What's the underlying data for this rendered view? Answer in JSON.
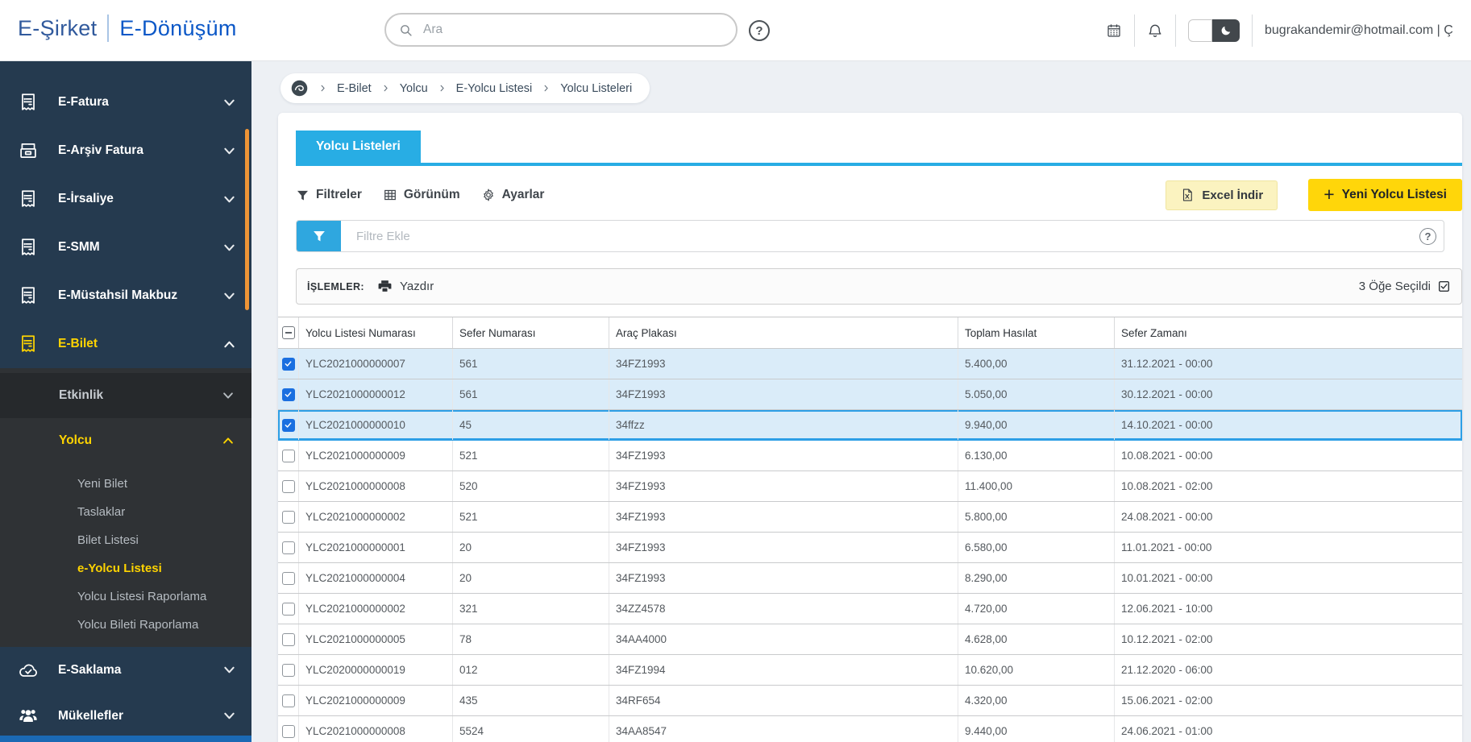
{
  "header": {
    "logo_primary": "E-Şirket",
    "logo_secondary": "E-Dönüşüm",
    "search_placeholder": "Ara",
    "help_label": "?",
    "user_email": "bugrakandemir@hotmail.com | Ç"
  },
  "breadcrumb": {
    "items": [
      "E-Bilet",
      "Yolcu",
      "E-Yolcu Listesi",
      "Yolcu Listeleri"
    ]
  },
  "sidebar": {
    "main_items": [
      {
        "label": "E-Fatura",
        "icon": "receipt-icon",
        "chevron": "down"
      },
      {
        "label": "E-Arşiv Fatura",
        "icon": "archive-icon",
        "chevron": "down"
      },
      {
        "label": "E-İrsaliye",
        "icon": "receipt-icon",
        "chevron": "down"
      },
      {
        "label": "E-SMM",
        "icon": "receipt-icon",
        "chevron": "down"
      },
      {
        "label": "E-Müstahsil Makbuz",
        "icon": "receipt-icon",
        "chevron": "down"
      },
      {
        "label": "E-Bilet",
        "icon": "receipt-icon",
        "chevron": "up",
        "active": true
      }
    ],
    "sub_items": [
      {
        "label": "Etkinlik",
        "level": 1,
        "chevron": "down"
      },
      {
        "label": "Yolcu",
        "level": 1,
        "chevron": "up",
        "active": true
      },
      {
        "label": "Yeni Bilet",
        "level": 2
      },
      {
        "label": "Taslaklar",
        "level": 2
      },
      {
        "label": "Bilet Listesi",
        "level": 2
      },
      {
        "label": "e-Yolcu Listesi",
        "level": 2,
        "active": true
      },
      {
        "label": "Yolcu Listesi Raporlama",
        "level": 2
      },
      {
        "label": "Yolcu Bileti Raporlama",
        "level": 2
      }
    ],
    "bottom_items": [
      {
        "label": "E-Saklama",
        "icon": "cloud-check-icon",
        "chevron": "down"
      },
      {
        "label": "Mükellefler",
        "icon": "users-icon",
        "chevron": "down"
      }
    ]
  },
  "page": {
    "tab_label": "Yolcu Listeleri"
  },
  "toolbar": {
    "filters_label": "Filtreler",
    "view_label": "Görünüm",
    "settings_label": "Ayarlar",
    "excel_button": "Excel İndir",
    "new_button_plus": "+",
    "new_button": "Yeni Yolcu Listesi"
  },
  "filter_bar": {
    "placeholder": "Filtre Ekle",
    "help_label": "?"
  },
  "actions_bar": {
    "operations_label": "İŞLEMLER:",
    "print_label": "Yazdır",
    "selected_label": "3 Öğe Seçildi"
  },
  "table": {
    "columns": [
      "Yolcu Listesi Numarası",
      "Sefer Numarası",
      "Araç Plakası",
      "Toplam Hasılat",
      "Sefer Zamanı"
    ],
    "rows": [
      {
        "selected": true,
        "focused": false,
        "cells": [
          "YLC2021000000007",
          "561",
          "34FZ1993",
          "5.400,00",
          "31.12.2021 - 00:00"
        ]
      },
      {
        "selected": true,
        "focused": false,
        "cells": [
          "YLC2021000000012",
          "561",
          "34FZ1993",
          "5.050,00",
          "30.12.2021 - 00:00"
        ]
      },
      {
        "selected": true,
        "focused": true,
        "cells": [
          "YLC2021000000010",
          "45",
          "34ffzz",
          "9.940,00",
          "14.10.2021 - 00:00"
        ]
      },
      {
        "selected": false,
        "focused": false,
        "cells": [
          "YLC2021000000009",
          "521",
          "34FZ1993",
          "6.130,00",
          "10.08.2021 - 00:00"
        ]
      },
      {
        "selected": false,
        "focused": false,
        "cells": [
          "YLC2021000000008",
          "520",
          "34FZ1993",
          "11.400,00",
          "10.08.2021 - 02:00"
        ]
      },
      {
        "selected": false,
        "focused": false,
        "cells": [
          "YLC2021000000002",
          "521",
          "34FZ1993",
          "5.800,00",
          "24.08.2021 - 00:00"
        ]
      },
      {
        "selected": false,
        "focused": false,
        "cells": [
          "YLC2021000000001",
          "20",
          "34FZ1993",
          "6.580,00",
          "11.01.2021 - 00:00"
        ]
      },
      {
        "selected": false,
        "focused": false,
        "cells": [
          "YLC2021000000004",
          "20",
          "34FZ1993",
          "8.290,00",
          "10.01.2021 - 00:00"
        ]
      },
      {
        "selected": false,
        "focused": false,
        "cells": [
          "YLC2021000000002",
          "321",
          "34ZZ4578",
          "4.720,00",
          "12.06.2021 - 10:00"
        ]
      },
      {
        "selected": false,
        "focused": false,
        "cells": [
          "YLC2021000000005",
          "78",
          "34AA4000",
          "4.628,00",
          "10.12.2021 - 02:00"
        ]
      },
      {
        "selected": false,
        "focused": false,
        "cells": [
          "YLC2020000000019",
          "012",
          "34FZ1994",
          "10.620,00",
          "21.12.2020 - 06:00"
        ]
      },
      {
        "selected": false,
        "focused": false,
        "cells": [
          "YLC2021000000009",
          "435",
          "34RF654",
          "4.320,00",
          "15.06.2021 - 02:00"
        ]
      },
      {
        "selected": false,
        "focused": false,
        "cells": [
          "YLC2021000000008",
          "5524",
          "34AA8547",
          "9.440,00",
          "24.06.2021 - 01:00"
        ]
      }
    ]
  },
  "colors": {
    "accent_yellow": "#ffd400",
    "accent_blue": "#28ade4",
    "sidebar_navy": "#253a4f",
    "submenu_charcoal": "#2f3235",
    "row_selected": "#daecf9",
    "checkbox_blue": "#1a6fe0",
    "logo_blue_left": "#30599c",
    "logo_blue_right": "#0c58c7"
  }
}
